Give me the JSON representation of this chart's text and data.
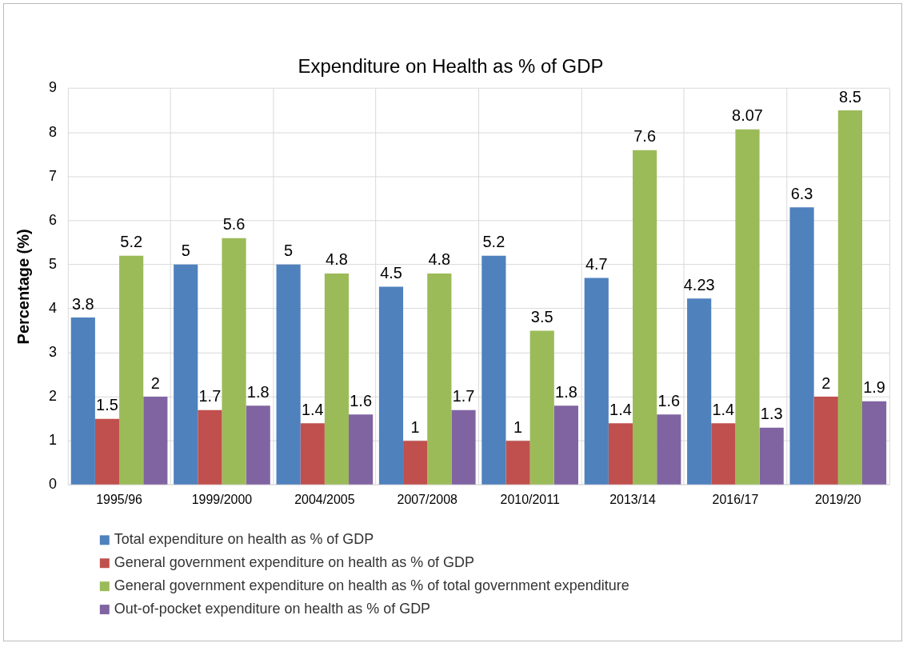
{
  "chart_data": {
    "type": "bar",
    "title": "Expenditure on Health as % of GDP",
    "ylabel": "Percentage (%)",
    "categories": [
      "1995/96",
      "1999/2000",
      "2004/2005",
      "2007/2008",
      "2010/2011",
      "2013/14",
      "2016/17",
      "2019/20"
    ],
    "series": [
      {
        "name": "Total expenditure on health as % of GDP",
        "color": "#4f81bd",
        "values": [
          3.8,
          5,
          5,
          4.5,
          5.2,
          4.7,
          4.23,
          6.3
        ]
      },
      {
        "name": "General government expenditure on health as % of GDP",
        "color": "#c0504d",
        "values": [
          1.5,
          1.7,
          1.4,
          1,
          1,
          1.4,
          1.4,
          2
        ]
      },
      {
        "name": "General government expenditure on health as % of total government expenditure",
        "color": "#9bbb59",
        "values": [
          5.2,
          5.6,
          4.8,
          4.8,
          3.5,
          7.6,
          8.07,
          8.5
        ]
      },
      {
        "name": "Out-of-pocket expenditure on health as % of GDP",
        "color": "#8064a2",
        "values": [
          2,
          1.8,
          1.6,
          1.7,
          1.8,
          1.6,
          1.3,
          1.9
        ]
      }
    ],
    "ylim": [
      0,
      9
    ],
    "yticks": [
      0,
      1,
      2,
      3,
      4,
      5,
      6,
      7,
      8,
      9
    ],
    "grid": true,
    "legend": "bottom",
    "data_labels": true
  }
}
